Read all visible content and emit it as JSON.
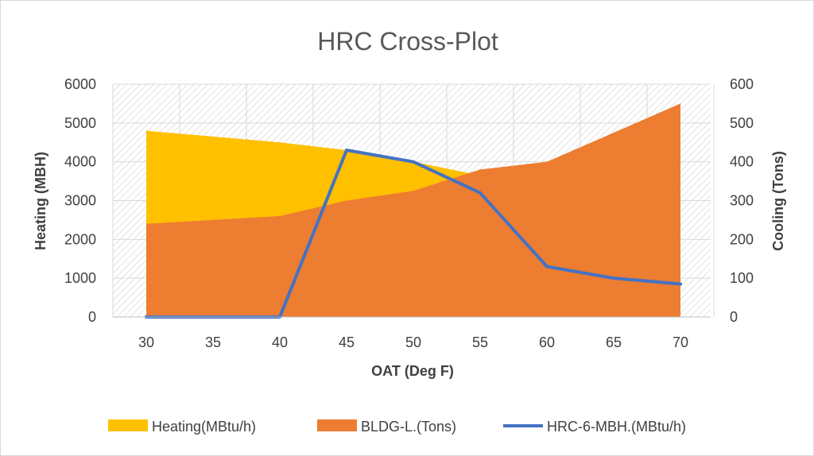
{
  "chart_data": {
    "type": "area",
    "title": "HRC Cross-Plot",
    "xlabel": "OAT (Deg F)",
    "ylabel": "Heating (MBH)",
    "y2label": "Cooling (Tons)",
    "x": [
      30,
      35,
      40,
      45,
      50,
      55,
      60,
      65,
      70
    ],
    "xticks": [
      "30",
      "35",
      "40",
      "45",
      "50",
      "55",
      "60",
      "65",
      "70"
    ],
    "ylim": [
      0,
      6000
    ],
    "yticks": [
      "0",
      "1000",
      "2000",
      "3000",
      "4000",
      "5000",
      "6000"
    ],
    "y2lim": [
      0,
      600
    ],
    "y2ticks": [
      "0",
      "100",
      "200",
      "300",
      "400",
      "500",
      "600"
    ],
    "grid": true,
    "legend_position": "bottom",
    "series": [
      {
        "name": "Heating(MBtu/h)",
        "type": "area",
        "axis": "left",
        "color": "#FFC000",
        "values": [
          4800,
          4650,
          4500,
          4300,
          4000,
          3650,
          3300,
          2950,
          2600
        ]
      },
      {
        "name": "BLDG-L.(Tons)",
        "type": "area",
        "axis": "right",
        "color": "#ED7D31",
        "values": [
          240,
          250,
          260,
          300,
          325,
          380,
          400,
          475,
          550
        ]
      },
      {
        "name": "HRC-6-MBH.(MBtu/h)",
        "type": "line",
        "axis": "left",
        "color": "#4472C4",
        "values": [
          0,
          0,
          0,
          4300,
          4000,
          3200,
          1300,
          1000,
          850
        ]
      }
    ]
  }
}
